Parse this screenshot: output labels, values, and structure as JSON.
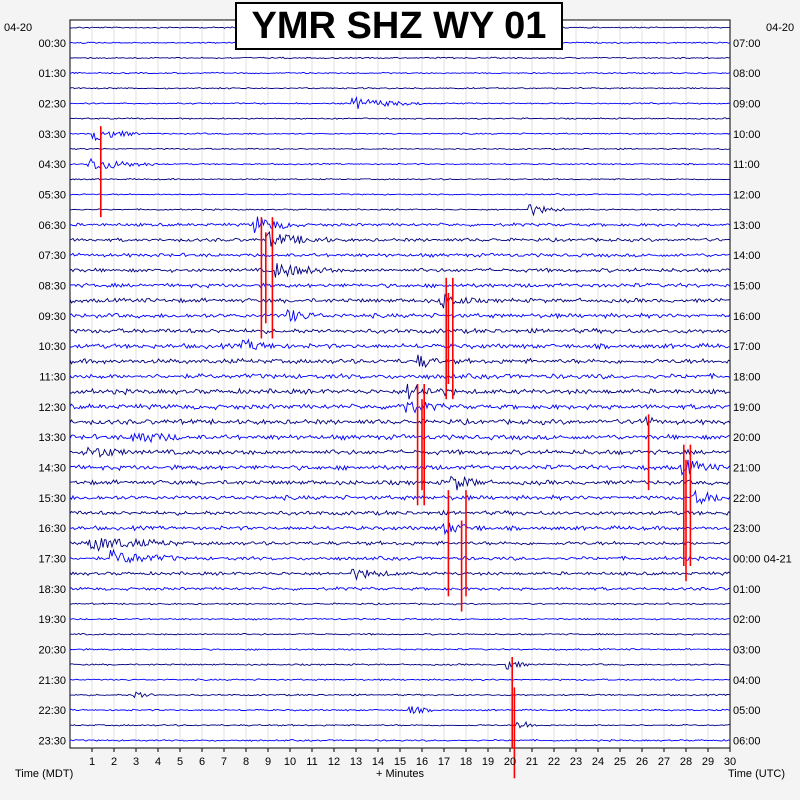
{
  "chart_data": {
    "type": "line",
    "title": "YMR SHZ WY 01",
    "left_date": "04-20",
    "right_date": "04-20",
    "left_axis_label": "Time (MDT)",
    "right_axis_label": "Time (UTC)",
    "x_axis_label": "+ Minutes",
    "x_ticks": [
      "1",
      "2",
      "3",
      "4",
      "5",
      "6",
      "7",
      "8",
      "9",
      "10",
      "11",
      "12",
      "13",
      "14",
      "15",
      "16",
      "17",
      "18",
      "19",
      "20",
      "21",
      "22",
      "23",
      "24",
      "25",
      "26",
      "27",
      "28",
      "29",
      "30"
    ],
    "xlim": [
      0,
      30
    ],
    "rows_per_hour": 2,
    "total_rows": 48,
    "left_labels": [
      "00:30",
      "01:30",
      "02:30",
      "03:30",
      "04:30",
      "05:30",
      "06:30",
      "07:30",
      "08:30",
      "09:30",
      "10:30",
      "11:30",
      "12:30",
      "13:30",
      "14:30",
      "15:30",
      "16:30",
      "17:30",
      "18:30",
      "19:30",
      "20:30",
      "21:30",
      "22:30",
      "23:30"
    ],
    "right_labels": [
      "07:00",
      "08:00",
      "09:00",
      "10:00",
      "11:00",
      "12:00",
      "13:00",
      "14:00",
      "15:00",
      "16:00",
      "17:00",
      "18:00",
      "19:00",
      "20:00",
      "21:00",
      "22:00",
      "23:00",
      "00:00 04-21",
      "01:00",
      "02:00",
      "03:00",
      "04:00",
      "05:00",
      "06:00"
    ],
    "trace_colors": [
      "#000080",
      "#0000ff"
    ],
    "clip_color": "#ff0000",
    "grid": true
  }
}
